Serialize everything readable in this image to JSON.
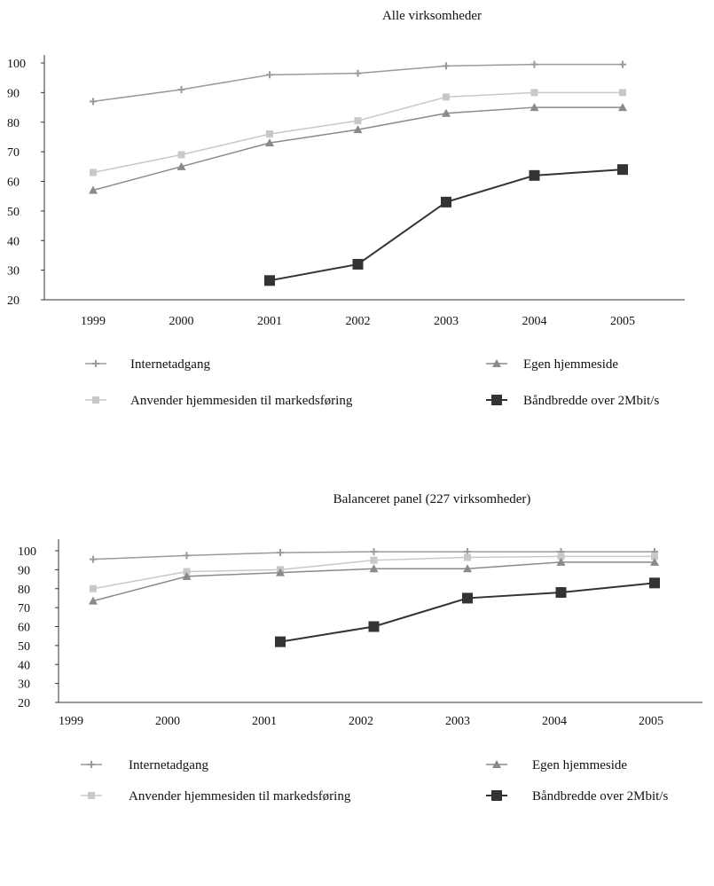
{
  "chart_data": [
    {
      "type": "line",
      "title": "Alle virksomheder",
      "xlabel": "",
      "ylabel": "",
      "categories": [
        "1999",
        "2000",
        "2001",
        "2002",
        "2003",
        "2004",
        "2005"
      ],
      "ylim": [
        20,
        100
      ],
      "yticks": [
        "100",
        "90",
        "80",
        "70",
        "60",
        "50",
        "40",
        "30",
        "20"
      ],
      "grid": false,
      "legend_position": "bottom",
      "series": [
        {
          "name": "Internetadgang",
          "values": [
            87,
            91,
            96,
            96.5,
            99,
            99.5,
            99.5
          ],
          "color": "#9a9a9a",
          "marker": "plus"
        },
        {
          "name": "Anvender hjemmesiden til markedsføring",
          "values": [
            63,
            69,
            76,
            80.5,
            88.5,
            90,
            90
          ],
          "color": "#c8c8c8",
          "marker": "square-light"
        },
        {
          "name": "Egen hjemmeside",
          "values": [
            57,
            65,
            73,
            77.5,
            83,
            85,
            85
          ],
          "color": "#8a8a8a",
          "marker": "triangle"
        },
        {
          "name": "Båndbredde over 2Mbit/s",
          "values": [
            null,
            null,
            26.5,
            32,
            53,
            62,
            64
          ],
          "color": "#333333",
          "marker": "square-dark"
        }
      ]
    },
    {
      "type": "line",
      "title": "Balanceret panel (227 virksomheder)",
      "xlabel": "",
      "ylabel": "",
      "categories": [
        "1999",
        "2000",
        "2001",
        "2002",
        "2003",
        "2004",
        "2005"
      ],
      "ylim": [
        20,
        100
      ],
      "yticks": [
        "100",
        "90",
        "80",
        "70",
        "60",
        "50",
        "40",
        "30",
        "20"
      ],
      "grid": false,
      "legend_position": "bottom",
      "series": [
        {
          "name": "Internetadgang",
          "values": [
            95.5,
            97.5,
            99,
            99.5,
            99.5,
            99.5,
            99.5
          ],
          "color": "#9a9a9a",
          "marker": "plus"
        },
        {
          "name": "Anvender hjemmesiden til markedsføring",
          "values": [
            80,
            89,
            90,
            95,
            96.5,
            97,
            97
          ],
          "color": "#c8c8c8",
          "marker": "square-light"
        },
        {
          "name": "Egen hjemmeside",
          "values": [
            73.5,
            86.5,
            88.5,
            90.5,
            90.5,
            94,
            94
          ],
          "color": "#8a8a8a",
          "marker": "triangle"
        },
        {
          "name": "Båndbredde over 2Mbit/s",
          "values": [
            null,
            null,
            52,
            60,
            75,
            78,
            83
          ],
          "color": "#333333",
          "marker": "square-dark"
        }
      ]
    }
  ]
}
